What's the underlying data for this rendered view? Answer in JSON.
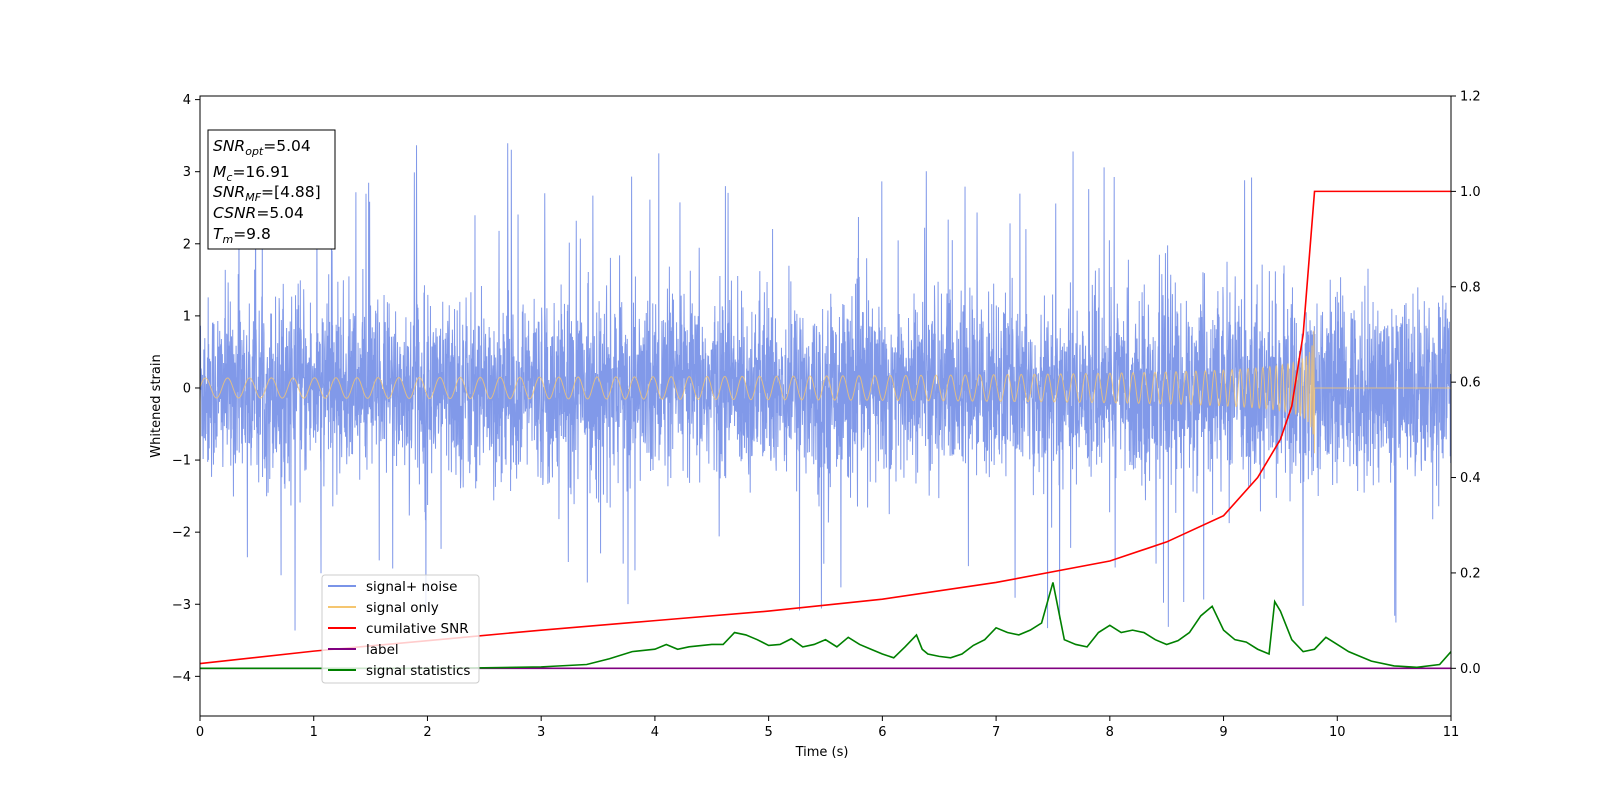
{
  "chart_data": {
    "type": "line",
    "xlabel": "Time (s)",
    "ylabel": "Whitened strain",
    "xlim": [
      0,
      11
    ],
    "ylim": [
      -4.55,
      4.05
    ],
    "y2lim": [
      -0.1,
      1.2
    ],
    "x_ticks": [
      "0",
      "1",
      "2",
      "3",
      "4",
      "5",
      "6",
      "7",
      "8",
      "9",
      "10",
      "11"
    ],
    "y_ticks": [
      "−4",
      "−3",
      "−2",
      "−1",
      "0",
      "1",
      "2",
      "3",
      "4"
    ],
    "y2_ticks": [
      "0.0",
      "0.2",
      "0.4",
      "0.6",
      "0.8",
      "1.0",
      "1.2"
    ],
    "grid": false,
    "legend_position": "lower-left",
    "annotation": {
      "lines": [
        {
          "sym": "SNR",
          "sub": "opt",
          "value": "=5.04"
        },
        {
          "sym": "M",
          "sub": "c",
          "value": "=16.91"
        },
        {
          "sym": "SNR",
          "sub": "MF",
          "value": "=[4.88]"
        },
        {
          "sym": "CSNR",
          "sub": "",
          "value": "=5.04"
        },
        {
          "sym": "T",
          "sub": "m",
          "value": "=9.8"
        }
      ]
    },
    "series": [
      {
        "name": "signal+ noise",
        "color": "#7a94e8",
        "axis": "left",
        "kind": "noise_band",
        "typical_amplitude": 1.4,
        "max": 3.65,
        "min": -4.15
      },
      {
        "name": "signal only",
        "color": "#f5c670",
        "axis": "left",
        "kind": "chirp",
        "merger_time": 9.8,
        "peak_amplitude": 1.0
      },
      {
        "name": "cumilative SNR",
        "color": "#ff0000",
        "axis": "right",
        "x": [
          0,
          1,
          2,
          3,
          4,
          5,
          6,
          7,
          8,
          8.5,
          9,
          9.3,
          9.5,
          9.6,
          9.7,
          9.75,
          9.8,
          9.81,
          11
        ],
        "y": [
          0.01,
          0.036,
          0.058,
          0.08,
          0.1,
          0.12,
          0.145,
          0.18,
          0.225,
          0.265,
          0.32,
          0.4,
          0.48,
          0.55,
          0.7,
          0.85,
          1.0,
          1.0,
          1.0
        ]
      },
      {
        "name": "label",
        "color": "#800080",
        "axis": "right",
        "x": [
          0,
          11
        ],
        "y": [
          0,
          0
        ]
      },
      {
        "name": "signal statistics",
        "color": "#008000",
        "axis": "right",
        "x": [
          0,
          1,
          2,
          2.5,
          3,
          3.4,
          3.6,
          3.8,
          4.0,
          4.1,
          4.2,
          4.3,
          4.5,
          4.6,
          4.7,
          4.8,
          4.9,
          5.0,
          5.1,
          5.2,
          5.3,
          5.4,
          5.5,
          5.6,
          5.7,
          5.8,
          5.9,
          6.0,
          6.1,
          6.2,
          6.3,
          6.35,
          6.4,
          6.5,
          6.6,
          6.7,
          6.8,
          6.9,
          7.0,
          7.1,
          7.2,
          7.3,
          7.4,
          7.5,
          7.55,
          7.6,
          7.7,
          7.8,
          7.9,
          8.0,
          8.1,
          8.2,
          8.3,
          8.4,
          8.5,
          8.6,
          8.7,
          8.8,
          8.9,
          9.0,
          9.1,
          9.2,
          9.3,
          9.4,
          9.45,
          9.5,
          9.6,
          9.7,
          9.8,
          9.9,
          10.0,
          10.1,
          10.2,
          10.3,
          10.5,
          10.7,
          10.9,
          11.0
        ],
        "y": [
          0,
          0,
          0,
          0.001,
          0.003,
          0.008,
          0.02,
          0.035,
          0.04,
          0.05,
          0.04,
          0.045,
          0.05,
          0.05,
          0.075,
          0.07,
          0.06,
          0.048,
          0.05,
          0.062,
          0.045,
          0.05,
          0.06,
          0.045,
          0.065,
          0.05,
          0.04,
          0.03,
          0.022,
          0.045,
          0.07,
          0.04,
          0.03,
          0.025,
          0.022,
          0.03,
          0.048,
          0.06,
          0.085,
          0.075,
          0.07,
          0.08,
          0.095,
          0.18,
          0.12,
          0.06,
          0.05,
          0.045,
          0.075,
          0.09,
          0.075,
          0.08,
          0.075,
          0.06,
          0.05,
          0.058,
          0.075,
          0.11,
          0.13,
          0.08,
          0.06,
          0.055,
          0.04,
          0.03,
          0.14,
          0.12,
          0.06,
          0.035,
          0.04,
          0.065,
          0.05,
          0.035,
          0.025,
          0.015,
          0.005,
          0.002,
          0.008,
          0.035
        ]
      }
    ]
  }
}
